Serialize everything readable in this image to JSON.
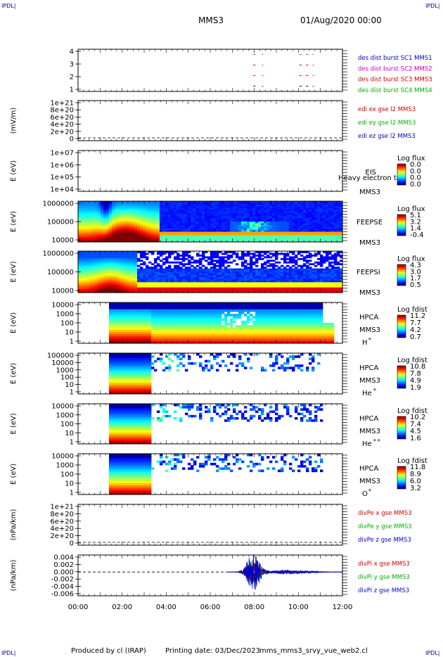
{
  "header": {
    "corner_left": "IPDL|",
    "corner_right": "IPDL|",
    "spacecraft": "MMS3",
    "date": "01/Aug/2020 00:00"
  },
  "footer": {
    "corner_left": "IPDL|",
    "corner_right": "IPDL|",
    "produced_by": "Produced by cl (IRAP)",
    "printing_date": "Printing date: 03/Dec/2023",
    "script": "mms_mms3_srvy_vue_web2.cl"
  },
  "colors": {
    "blue": "#0000c8",
    "red": "#d00000",
    "magenta": "#c000c0",
    "green": "#00b000"
  },
  "chart_data": {
    "type": "multi-panel time series and spectrograms",
    "x": {
      "ticks": [
        "00:00",
        "02:00",
        "04:00",
        "06:00",
        "08:00",
        "10:00",
        "12:00"
      ],
      "range_hours": [
        0,
        12
      ]
    },
    "panels": [
      {
        "id": "burst",
        "type": "line",
        "ylabel": "",
        "yticks": [
          "4",
          "3",
          "2",
          "1"
        ],
        "ylim": [
          0.5,
          4.5
        ],
        "legend": [
          {
            "text": "des dist burst SC1 MMS1",
            "color": "#0000c8"
          },
          {
            "text": "des dist burst SC2 MMS2",
            "color": "#c000c0"
          },
          {
            "text": "des dist burst SC3 MMS3",
            "color": "#d00000"
          },
          {
            "text": "des dist burst SC4 MMS4",
            "color": "#00b000"
          }
        ],
        "segments": [
          {
            "y": 4,
            "color": "#00b000",
            "x": [
              [
                7.95,
                8.05
              ],
              [
                8.35,
                8.4
              ],
              [
                10.05,
                10.15
              ],
              [
                10.35,
                10.45
              ],
              [
                10.65,
                10.7
              ]
            ]
          },
          {
            "y": 3,
            "color": "#d00000",
            "x": [
              [
                7.95,
                8.05
              ],
              [
                8.35,
                8.4
              ],
              [
                10.05,
                10.15
              ],
              [
                10.35,
                10.45
              ],
              [
                10.65,
                10.7
              ]
            ]
          },
          {
            "y": 2,
            "color": "#c000c0",
            "x": [
              [
                7.95,
                8.05
              ],
              [
                8.35,
                8.4
              ],
              [
                10.05,
                10.15
              ],
              [
                10.35,
                10.45
              ],
              [
                10.65,
                10.7
              ]
            ]
          },
          {
            "y": 1,
            "color": "#0000c8",
            "x": [
              [
                7.95,
                8.05
              ],
              [
                8.35,
                8.4
              ],
              [
                10.05,
                10.15
              ],
              [
                10.35,
                10.45
              ],
              [
                10.65,
                10.7
              ]
            ]
          }
        ]
      },
      {
        "id": "edi",
        "type": "line",
        "ylabel": "(mV/m)",
        "yticks": [
          "1e+21",
          "8e+20",
          "6e+20",
          "4e+20",
          "2e+20",
          "0"
        ],
        "legend": [
          {
            "text": "edi ex gse l2 MMS3",
            "color": "#d00000"
          },
          {
            "text": "edi ey gse l2 MMS3",
            "color": "#00b000"
          },
          {
            "text": "edi ez gse l2 MMS3",
            "color": "#0000c8"
          }
        ]
      },
      {
        "id": "eis",
        "type": "heatmap",
        "ylabel": "E (eV)",
        "yticks": [
          "1e+07",
          "1e+06",
          "1e+05",
          "1e+04"
        ],
        "name": "EIS",
        "subname": "MMS3",
        "overlay": "Heavy electron to",
        "cbar_title": "Log flux",
        "cbar_ticks": [
          "0.0",
          "0.0",
          "0.0",
          "0.0"
        ]
      },
      {
        "id": "feepse",
        "type": "heatmap",
        "ylabel": "E (eV)",
        "yticks": [
          "1000000",
          "100000",
          "10000"
        ],
        "name": "FEEPSE",
        "subname": "MMS3",
        "cbar_title": "Log flux",
        "cbar_ticks": [
          "5.1",
          "3.2",
          "1.4",
          "-0.4"
        ]
      },
      {
        "id": "feepsi",
        "type": "heatmap",
        "ylabel": "E (eV)",
        "yticks": [
          "1000000",
          "100000",
          "10000"
        ],
        "name": "FEEPSI",
        "subname": "MMS3",
        "cbar_title": "Log flux",
        "cbar_ticks": [
          "4.3",
          "3.0",
          "1.7",
          "0.5"
        ]
      },
      {
        "id": "hpca_h",
        "type": "heatmap",
        "ylabel": "E (eV)",
        "yticks": [
          "10000",
          "1000",
          "100",
          "10",
          "1"
        ],
        "name": "HPCA",
        "subname": "MMS3",
        "species": "H",
        "charge": "+",
        "cbar_title": "Log fdist",
        "cbar_ticks": [
          "11.2",
          "7.7",
          "4.2",
          "0.7"
        ]
      },
      {
        "id": "hpca_he",
        "type": "heatmap",
        "ylabel": "E (eV)",
        "yticks": [
          "100000",
          "10000",
          "1000",
          "100",
          "10",
          "1"
        ],
        "name": "HPCA",
        "subname": "MMS3",
        "species": "He",
        "charge": "+",
        "cbar_title": "Log fdist",
        "cbar_ticks": [
          "10.8",
          "7.8",
          "4.9",
          "1.9"
        ]
      },
      {
        "id": "hpca_hepp",
        "type": "heatmap",
        "ylabel": "E (eV)",
        "yticks": [
          "10000",
          "1000",
          "100",
          "10",
          "1"
        ],
        "name": "HPCA",
        "subname": "MMS3",
        "species": "He",
        "charge": "++",
        "cbar_title": "Log fdist",
        "cbar_ticks": [
          "10.2",
          "7.4",
          "4.5",
          "1.6"
        ]
      },
      {
        "id": "hpca_o",
        "type": "heatmap",
        "ylabel": "E (eV)",
        "yticks": [
          "10000",
          "1000",
          "100",
          "10",
          "1"
        ],
        "name": "HPCA",
        "subname": "MMS3",
        "species": "O",
        "charge": "+",
        "cbar_title": "Log fdist",
        "cbar_ticks": [
          "11.8",
          "8.9",
          "6.0",
          "3.2"
        ]
      },
      {
        "id": "divpe",
        "type": "line",
        "ylabel": "(nPa/km)",
        "yticks": [
          "1e+21",
          "8e+20",
          "6e+20",
          "4e+20",
          "2e+20",
          "0"
        ],
        "legend": [
          {
            "text": "divPe x gse MMS3",
            "color": "#d00000"
          },
          {
            "text": "divPe y gse MMS3",
            "color": "#00b000"
          },
          {
            "text": "divPe z gse MMS3",
            "color": "#0000c8"
          }
        ]
      },
      {
        "id": "divpi",
        "type": "line",
        "ylabel": "(nPa/km)",
        "yticks": [
          "0.004",
          "0.002",
          "0.000",
          "-0.002",
          "-0.004",
          "-0.006"
        ],
        "ylim": [
          -0.007,
          0.005
        ],
        "legend": [
          {
            "text": "divPi x gse MMS3",
            "color": "#d00000"
          },
          {
            "text": "divPi y gse MMS3",
            "color": "#00b000"
          },
          {
            "text": "divPi z gse MMS3",
            "color": "#0000c8"
          }
        ]
      }
    ]
  }
}
